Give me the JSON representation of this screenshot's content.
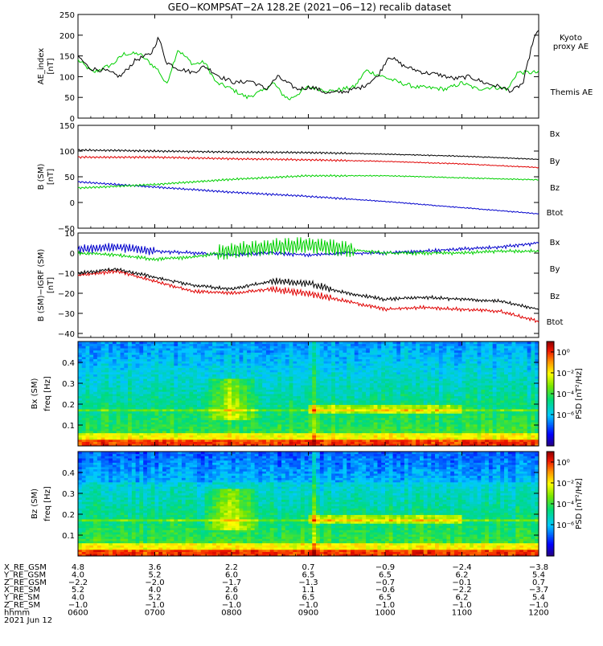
{
  "title": "GEO−KOMPSAT−2A 128.2E (2021−06−12) recalib dataset",
  "colors": {
    "black": "#000000",
    "red": "#e00000",
    "green": "#00d000",
    "blue": "#0000cc"
  },
  "x_axis": {
    "tick_labels": [
      "0600",
      "0700",
      "0800",
      "0900",
      "1000",
      "1100",
      "1200"
    ],
    "range_hours": [
      6,
      12
    ]
  },
  "ephemeris": {
    "row_labels": [
      "X_RE_GSM",
      "Y_RE_GSM",
      "Z_RE_GSM",
      "X_RE_SM",
      "Y_RE_SM",
      "Z_RE_SM",
      "hhmm"
    ],
    "rows": [
      [
        "4.8",
        "3.6",
        "2.2",
        "0.7",
        "−0.9",
        "−2.4",
        "−3.8"
      ],
      [
        "4.0",
        "5.2",
        "6.0",
        "6.5",
        "6.5",
        "6.2",
        "5.4"
      ],
      [
        "−2.2",
        "−2.0",
        "−1.7",
        "−1.3",
        "−0.7",
        "−0.1",
        "0.7"
      ],
      [
        "5.2",
        "4.0",
        "2.6",
        "1.1",
        "−0.6",
        "−2.2",
        "−3.7"
      ],
      [
        "4.0",
        "5.2",
        "6.0",
        "6.5",
        "6.5",
        "6.2",
        "5.4"
      ],
      [
        "−1.0",
        "−1.0",
        "−1.0",
        "−1.0",
        "−1.0",
        "−1.0",
        "−1.0"
      ],
      [
        "0600",
        "0700",
        "0800",
        "0900",
        "1000",
        "1100",
        "1200"
      ]
    ],
    "date": "2021 Jun 12"
  },
  "chart_data": [
    {
      "type": "line",
      "panel": "AE",
      "ylabel_line1": "AE_index",
      "ylabel_line2": "[nT]",
      "ylim": [
        0,
        250
      ],
      "yticks": [
        0,
        50,
        100,
        150,
        200,
        250
      ],
      "series": [
        {
          "name": "Kyoto proxy AE",
          "label_lines": [
            "Kyoto",
            "proxy AE"
          ],
          "color": "green",
          "x": [
            6.0,
            6.2,
            6.45,
            6.6,
            6.8,
            7.05,
            7.15,
            7.3,
            7.5,
            7.65,
            7.8,
            7.95,
            8.1,
            8.2,
            8.4,
            8.55,
            8.65,
            8.75,
            9.0,
            9.3,
            9.6,
            9.75,
            10.2,
            10.4,
            10.8,
            11.0,
            11.2,
            11.4,
            11.6,
            11.72,
            11.8,
            12.0
          ],
          "y": [
            140,
            110,
            130,
            155,
            155,
            115,
            80,
            165,
            130,
            135,
            85,
            75,
            60,
            50,
            65,
            85,
            60,
            45,
            75,
            65,
            75,
            115,
            85,
            75,
            70,
            85,
            70,
            75,
            70,
            110,
            110,
            110
          ]
        },
        {
          "name": "Themis AE",
          "label_lines": [
            "Themis AE"
          ],
          "color": "black",
          "x": [
            6.0,
            6.15,
            6.35,
            6.55,
            6.75,
            6.95,
            7.05,
            7.15,
            7.3,
            7.5,
            7.65,
            7.85,
            8.05,
            8.25,
            8.45,
            8.6,
            8.85,
            9.05,
            9.25,
            9.5,
            9.7,
            9.9,
            10.05,
            10.25,
            10.5,
            10.7,
            10.9,
            11.1,
            11.3,
            11.5,
            11.65,
            11.8,
            11.93,
            12.0
          ],
          "y": [
            150,
            120,
            115,
            100,
            140,
            155,
            195,
            135,
            120,
            110,
            125,
            100,
            85,
            90,
            70,
            100,
            70,
            75,
            60,
            65,
            75,
            100,
            150,
            125,
            110,
            105,
            95,
            100,
            85,
            75,
            65,
            85,
            190,
            210
          ]
        }
      ]
    },
    {
      "type": "line",
      "panel": "B",
      "ylabel_line1": "B (SM)",
      "ylabel_line2": "[nT]",
      "ylim": [
        -50,
        150
      ],
      "yticks": [
        -50,
        0,
        50,
        100,
        150
      ],
      "series": [
        {
          "name": "Bx",
          "color": "blue",
          "x": [
            6,
            7,
            8,
            9,
            10,
            11,
            12
          ],
          "y": [
            40,
            30,
            20,
            12,
            2,
            -10,
            -22
          ]
        },
        {
          "name": "By",
          "color": "green",
          "x": [
            6,
            7,
            8,
            9,
            10,
            11,
            12
          ],
          "y": [
            28,
            35,
            45,
            52,
            52,
            48,
            44
          ]
        },
        {
          "name": "Bz",
          "color": "red",
          "x": [
            6,
            7,
            8,
            9,
            10,
            11,
            12
          ],
          "y": [
            88,
            88,
            85,
            83,
            80,
            75,
            68
          ]
        },
        {
          "name": "Btot",
          "color": "black",
          "x": [
            6,
            7,
            8,
            9,
            10,
            11,
            12
          ],
          "y": [
            102,
            100,
            98,
            97,
            94,
            90,
            84
          ]
        }
      ]
    },
    {
      "type": "line",
      "panel": "dB",
      "ylabel_line1": "B (SM)−IGRF (SM)",
      "ylabel_line2": "[nT]",
      "ylim": [
        -42,
        10
      ],
      "yticks": [
        -40,
        -30,
        -20,
        -10,
        0,
        10
      ],
      "series": [
        {
          "name": "Bx",
          "color": "blue",
          "x": [
            6,
            6.5,
            7,
            7.5,
            8,
            8.5,
            9,
            9.5,
            10,
            10.5,
            11,
            11.5,
            12
          ],
          "y": [
            2,
            3,
            1,
            0,
            -1,
            0,
            -1,
            0,
            0,
            1,
            2,
            3,
            5
          ]
        },
        {
          "name": "By",
          "color": "green",
          "x": [
            6,
            6.5,
            7,
            7.5,
            8,
            8.5,
            9,
            9.5,
            10,
            10.5,
            11,
            11.5,
            12
          ],
          "y": [
            0,
            -1,
            -3,
            -2,
            1,
            3,
            4,
            2,
            0,
            0,
            0,
            1,
            1
          ]
        },
        {
          "name": "Bz",
          "color": "red",
          "x": [
            6,
            6.5,
            7,
            7.5,
            8,
            8.5,
            9,
            9.5,
            10,
            10.5,
            11,
            11.5,
            12
          ],
          "y": [
            -11,
            -9,
            -14,
            -19,
            -20,
            -18,
            -20,
            -24,
            -28,
            -27,
            -28,
            -29,
            -34
          ]
        },
        {
          "name": "Btot",
          "color": "black",
          "x": [
            6,
            6.5,
            7,
            7.5,
            8,
            8.5,
            9,
            9.5,
            10,
            10.5,
            11,
            11.5,
            12
          ],
          "y": [
            -10,
            -8,
            -12,
            -16,
            -18,
            -14,
            -15,
            -20,
            -23,
            -22,
            -23,
            -24,
            -28
          ]
        }
      ]
    },
    {
      "type": "heatmap",
      "panel": "Bx spectrogram",
      "ylabel_line1": "Bx (SM)",
      "ylabel_line2": "freq [Hz]",
      "ylim": [
        0,
        0.5
      ],
      "yticks": [
        0.1,
        0.2,
        0.3,
        0.4
      ],
      "colorbar_label": "PSD [nT²/Hz]",
      "colorbar_ticks": [
        "10⁰",
        "10⁻²",
        "10⁻⁴",
        "10⁻⁶"
      ],
      "colorbar_exponents": [
        0,
        -2,
        -4,
        -6
      ]
    },
    {
      "type": "heatmap",
      "panel": "Bz spectrogram",
      "ylabel_line1": "Bz (SM)",
      "ylabel_line2": "freq [Hz]",
      "ylim": [
        0,
        0.5
      ],
      "yticks": [
        0.1,
        0.2,
        0.3,
        0.4
      ],
      "colorbar_label": "PSD [nT²/Hz]",
      "colorbar_ticks": [
        "10⁰",
        "10⁻²",
        "10⁻⁴",
        "10⁻⁶"
      ],
      "colorbar_exponents": [
        0,
        -2,
        -4,
        -6
      ]
    }
  ]
}
